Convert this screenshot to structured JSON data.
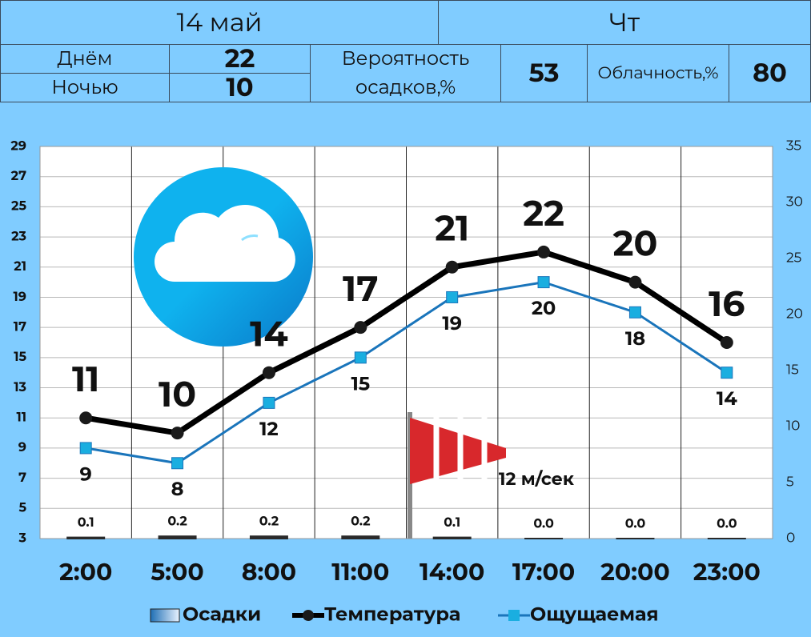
{
  "header": {
    "date": "14 май",
    "weekday": "Чт",
    "day_label": "Днём",
    "day_value": 22,
    "night_label": "Ночью",
    "night_value": 10,
    "precip_label": "Вероятность осадков,%",
    "precip_value": 53,
    "cloud_label": "Облачность,%",
    "cloud_value": 80
  },
  "chart_data": {
    "type": "line",
    "categories": [
      "2:00",
      "5:00",
      "8:00",
      "11:00",
      "14:00",
      "17:00",
      "20:00",
      "23:00"
    ],
    "series": [
      {
        "name": "Осадки",
        "type": "bar",
        "axis": "y2",
        "color": "#2a2a2a",
        "values": [
          0.1,
          0.2,
          0.2,
          0.2,
          0.1,
          0.0,
          0.0,
          0.0
        ],
        "value_labels": [
          "0.1",
          "0.2",
          "0.2",
          "0.2",
          "0.1",
          "0.0",
          "0.0",
          "0.0"
        ]
      },
      {
        "name": "Температура",
        "color": "#000000",
        "marker_color": "#1a1a1a",
        "values": [
          11,
          10,
          14,
          17,
          21,
          22,
          20,
          16
        ]
      },
      {
        "name": "Ощущаемая",
        "color": "#1a75bb",
        "marker_color": "#1aaee0",
        "values": [
          9,
          8,
          12,
          15,
          19,
          20,
          18,
          14
        ]
      }
    ],
    "ylim": [
      3,
      29
    ],
    "yticks": [
      3,
      5,
      7,
      9,
      11,
      13,
      15,
      17,
      19,
      21,
      23,
      25,
      27,
      29
    ],
    "y2lim": [
      0,
      35
    ],
    "y2ticks": [
      0,
      5,
      10,
      15,
      20,
      25,
      30,
      35
    ],
    "grid": true,
    "annotation": "12 м/сек"
  }
}
